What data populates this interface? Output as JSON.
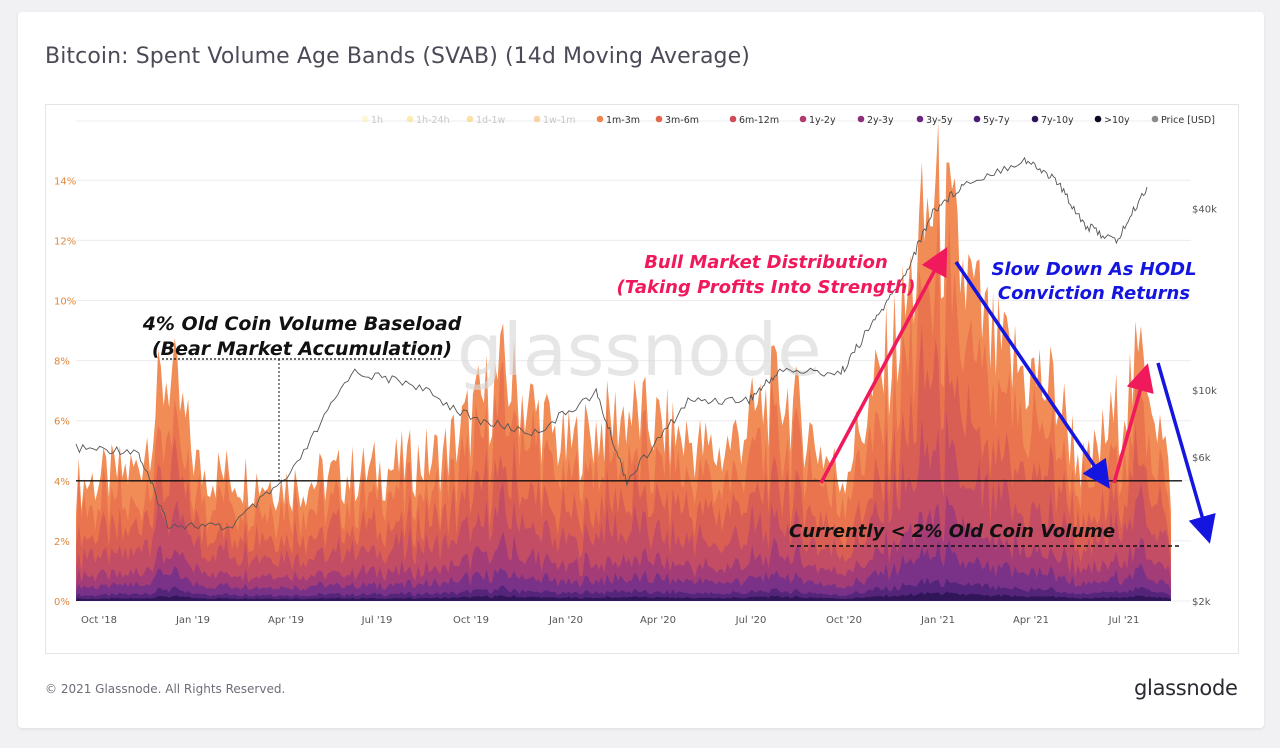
{
  "header": {
    "title": "Bitcoin: Spent Volume Age Bands (SVAB) (14d Moving Average)"
  },
  "footer": {
    "copyright": "© 2021 Glassnode. All Rights Reserved.",
    "logo": "glassnode"
  },
  "watermark": "glassnode",
  "chart_data": {
    "type": "area",
    "title": "Bitcoin: Spent Volume Age Bands (SVAB) (14d Moving Average)",
    "legend": [
      {
        "name": "1h",
        "color": "#fbeea0",
        "dimmed": true
      },
      {
        "name": "1h-24h",
        "color": "#f6da57",
        "dimmed": true
      },
      {
        "name": "1d-1w",
        "color": "#f6c23c",
        "dimmed": true
      },
      {
        "name": "1w-1m",
        "color": "#f5a13c",
        "dimmed": true
      },
      {
        "name": "1m-3m",
        "color": "#f0864d",
        "dimmed": false
      },
      {
        "name": "3m-6m",
        "color": "#e1664b",
        "dimmed": false
      },
      {
        "name": "6m-12m",
        "color": "#cf4b58",
        "dimmed": false
      },
      {
        "name": "1y-2y",
        "color": "#b13a6e",
        "dimmed": false
      },
      {
        "name": "2y-3y",
        "color": "#8f2e7c",
        "dimmed": false
      },
      {
        "name": "3y-5y",
        "color": "#6a2681",
        "dimmed": false
      },
      {
        "name": "5y-7y",
        "color": "#4b1c75",
        "dimmed": false
      },
      {
        "name": "7y-10y",
        "color": "#2c1458",
        "dimmed": false
      },
      {
        "name": ">10y",
        "color": "#0c0820",
        "dimmed": false
      },
      {
        "name": "Price [USD]",
        "color": "#8a8a8a",
        "dimmed": false
      }
    ],
    "legend_position": "top-right",
    "y_left_ticks": [
      "14%",
      "12%",
      "10%",
      "8%",
      "6%",
      "4%",
      "2%",
      "0%"
    ],
    "y_left_values": [
      14,
      12,
      10,
      8,
      6,
      4,
      2,
      0
    ],
    "y_right_ticks": [
      "$40k",
      "$10k",
      "$6k",
      "$2k"
    ],
    "y_right_values": [
      40000,
      10000,
      6000,
      2000
    ],
    "x_ticks": [
      "Oct '18",
      "Jan '19",
      "Apr '19",
      "Jul '19",
      "Oct '19",
      "Jan '20",
      "Apr '20",
      "Jul '20",
      "Oct '20",
      "Jan '21",
      "Apr '21",
      "Jul '21"
    ],
    "ylim": [
      0,
      15.5
    ],
    "grid": true,
    "stacked_total_percent": [
      {
        "date": "2018-09",
        "v": 4.0
      },
      {
        "date": "2018-11",
        "v": 4.5
      },
      {
        "date": "2018-12",
        "v": 8.0
      },
      {
        "date": "2019-01",
        "v": 4.5
      },
      {
        "date": "2019-04",
        "v": 4.0
      },
      {
        "date": "2019-07",
        "v": 4.5
      },
      {
        "date": "2019-09",
        "v": 5.0
      },
      {
        "date": "2019-11",
        "v": 7.8
      },
      {
        "date": "2020-01",
        "v": 5.2
      },
      {
        "date": "2020-03",
        "v": 6.5
      },
      {
        "date": "2020-06",
        "v": 5.0
      },
      {
        "date": "2020-08",
        "v": 7.3
      },
      {
        "date": "2020-10",
        "v": 4.2
      },
      {
        "date": "2020-12",
        "v": 9.5
      },
      {
        "date": "2021-01",
        "v": 13.8
      },
      {
        "date": "2021-03",
        "v": 8.5
      },
      {
        "date": "2021-05",
        "v": 7.2
      },
      {
        "date": "2021-06",
        "v": 4.3
      },
      {
        "date": "2021-08",
        "v": 8.5
      },
      {
        "date": "2021-09",
        "v": 2.5
      }
    ],
    "price_usd": [
      {
        "date": "2018-09",
        "v": 6400
      },
      {
        "date": "2018-11",
        "v": 6300
      },
      {
        "date": "2018-12",
        "v": 3600
      },
      {
        "date": "2019-02",
        "v": 3500
      },
      {
        "date": "2019-04",
        "v": 5200
      },
      {
        "date": "2019-06",
        "v": 11500
      },
      {
        "date": "2019-08",
        "v": 10500
      },
      {
        "date": "2019-10",
        "v": 8000
      },
      {
        "date": "2019-12",
        "v": 7200
      },
      {
        "date": "2020-02",
        "v": 9800
      },
      {
        "date": "2020-03",
        "v": 5000
      },
      {
        "date": "2020-05",
        "v": 9200
      },
      {
        "date": "2020-07",
        "v": 9300
      },
      {
        "date": "2020-08",
        "v": 11600
      },
      {
        "date": "2020-10",
        "v": 11400
      },
      {
        "date": "2020-11",
        "v": 16500
      },
      {
        "date": "2020-12",
        "v": 23000
      },
      {
        "date": "2021-01",
        "v": 39000
      },
      {
        "date": "2021-02",
        "v": 48000
      },
      {
        "date": "2021-04",
        "v": 58000
      },
      {
        "date": "2021-05",
        "v": 50000
      },
      {
        "date": "2021-06",
        "v": 35000
      },
      {
        "date": "2021-07",
        "v": 31000
      },
      {
        "date": "2021-08",
        "v": 47000
      }
    ],
    "reference_line": {
      "y": 4,
      "label": "4% Old Coin Volume Baseload"
    }
  },
  "annotations": {
    "baseload_line1": "4% Old Coin Volume Baseload",
    "baseload_line2": "(Bear Market Accumulation)",
    "bull_line1": "Bull Market Distribution",
    "bull_line2": "(Taking Profits Into Strength)",
    "slow_line1": "Slow Down As HODL",
    "slow_line2": "Conviction Returns",
    "current": "Currently < 2% Old Coin Volume",
    "bull_color": "#f0195c",
    "slow_color": "#1515e0"
  }
}
